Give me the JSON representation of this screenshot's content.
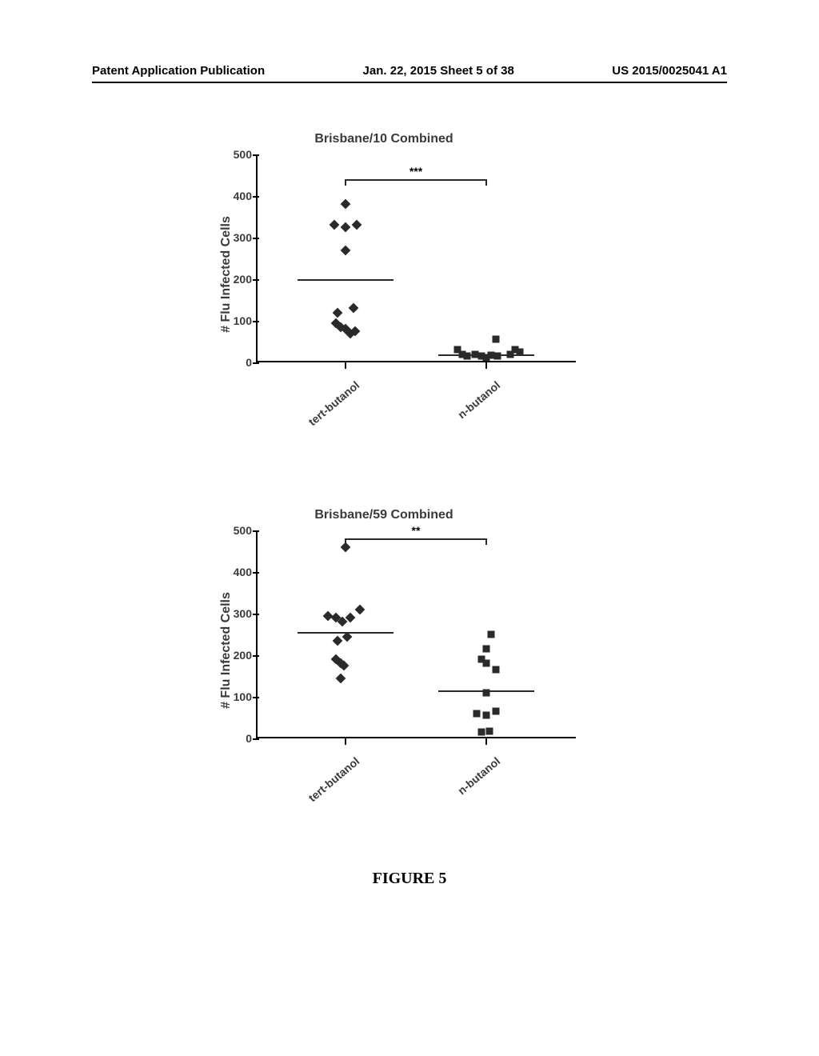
{
  "header": {
    "left": "Patent Application Publication",
    "center": "Jan. 22, 2015  Sheet 5 of 38",
    "right": "US 2015/0025041 A1"
  },
  "figure_label": "FIGURE 5",
  "chart1": {
    "type": "scatter",
    "title": "Brisbane/10 Combined",
    "ylabel": "# Flu Infected Cells",
    "ylim": [
      0,
      500
    ],
    "ytick_step": 100,
    "yticks": [
      0,
      100,
      200,
      300,
      400,
      500
    ],
    "categories": [
      "tert-butanol",
      "n-butanol"
    ],
    "label_fontsize": 16,
    "title_fontsize": 16,
    "tick_fontsize": 14,
    "marker_styles": [
      "diamond",
      "square"
    ],
    "marker_colors": [
      "#2a2a2a",
      "#2a2a2a"
    ],
    "marker_size": 9,
    "mean_line_color": "#2a2a2a",
    "means": [
      200,
      20
    ],
    "significance": "***",
    "sig_y": 440,
    "background_color": "#ffffff",
    "series": [
      {
        "cat": 0,
        "x_offset": 0.0,
        "y": 380
      },
      {
        "cat": 0,
        "x_offset": -0.12,
        "y": 330
      },
      {
        "cat": 0,
        "x_offset": 0.0,
        "y": 325
      },
      {
        "cat": 0,
        "x_offset": 0.12,
        "y": 330
      },
      {
        "cat": 0,
        "x_offset": 0.0,
        "y": 270
      },
      {
        "cat": 0,
        "x_offset": -0.08,
        "y": 120
      },
      {
        "cat": 0,
        "x_offset": 0.08,
        "y": 130
      },
      {
        "cat": 0,
        "x_offset": -0.1,
        "y": 95
      },
      {
        "cat": 0,
        "x_offset": -0.05,
        "y": 85
      },
      {
        "cat": 0,
        "x_offset": 0.0,
        "y": 80
      },
      {
        "cat": 0,
        "x_offset": 0.05,
        "y": 70
      },
      {
        "cat": 0,
        "x_offset": 0.1,
        "y": 75
      },
      {
        "cat": 1,
        "x_offset": -0.3,
        "y": 30
      },
      {
        "cat": 1,
        "x_offset": -0.25,
        "y": 20
      },
      {
        "cat": 1,
        "x_offset": -0.2,
        "y": 15
      },
      {
        "cat": 1,
        "x_offset": -0.12,
        "y": 20
      },
      {
        "cat": 1,
        "x_offset": -0.05,
        "y": 15
      },
      {
        "cat": 1,
        "x_offset": 0.0,
        "y": 12
      },
      {
        "cat": 1,
        "x_offset": 0.05,
        "y": 18
      },
      {
        "cat": 1,
        "x_offset": 0.1,
        "y": 55
      },
      {
        "cat": 1,
        "x_offset": 0.12,
        "y": 15
      },
      {
        "cat": 1,
        "x_offset": 0.25,
        "y": 20
      },
      {
        "cat": 1,
        "x_offset": 0.3,
        "y": 30
      },
      {
        "cat": 1,
        "x_offset": 0.35,
        "y": 25
      }
    ]
  },
  "chart2": {
    "type": "scatter",
    "title": "Brisbane/59 Combined",
    "ylabel": "# Flu Infected Cells",
    "ylim": [
      0,
      500
    ],
    "ytick_step": 100,
    "yticks": [
      0,
      100,
      200,
      300,
      400,
      500
    ],
    "categories": [
      "tert-butanol",
      "n-butanol"
    ],
    "label_fontsize": 16,
    "title_fontsize": 16,
    "tick_fontsize": 14,
    "marker_styles": [
      "diamond",
      "square"
    ],
    "marker_colors": [
      "#2a2a2a",
      "#2a2a2a"
    ],
    "marker_size": 9,
    "mean_line_color": "#2a2a2a",
    "means": [
      255,
      115
    ],
    "significance": "**",
    "sig_y": 480,
    "background_color": "#ffffff",
    "series": [
      {
        "cat": 0,
        "x_offset": 0.0,
        "y": 460
      },
      {
        "cat": 0,
        "x_offset": -0.18,
        "y": 295
      },
      {
        "cat": 0,
        "x_offset": -0.1,
        "y": 290
      },
      {
        "cat": 0,
        "x_offset": -0.03,
        "y": 280
      },
      {
        "cat": 0,
        "x_offset": 0.05,
        "y": 290
      },
      {
        "cat": 0,
        "x_offset": 0.15,
        "y": 310
      },
      {
        "cat": 0,
        "x_offset": -0.08,
        "y": 235
      },
      {
        "cat": 0,
        "x_offset": 0.02,
        "y": 245
      },
      {
        "cat": 0,
        "x_offset": -0.1,
        "y": 190
      },
      {
        "cat": 0,
        "x_offset": -0.05,
        "y": 180
      },
      {
        "cat": 0,
        "x_offset": -0.02,
        "y": 175
      },
      {
        "cat": 0,
        "x_offset": -0.05,
        "y": 145
      },
      {
        "cat": 1,
        "x_offset": 0.05,
        "y": 250
      },
      {
        "cat": 1,
        "x_offset": 0.0,
        "y": 215
      },
      {
        "cat": 1,
        "x_offset": -0.05,
        "y": 190
      },
      {
        "cat": 1,
        "x_offset": 0.0,
        "y": 180
      },
      {
        "cat": 1,
        "x_offset": 0.1,
        "y": 165
      },
      {
        "cat": 1,
        "x_offset": 0.0,
        "y": 110
      },
      {
        "cat": 1,
        "x_offset": -0.1,
        "y": 60
      },
      {
        "cat": 1,
        "x_offset": 0.0,
        "y": 55
      },
      {
        "cat": 1,
        "x_offset": 0.1,
        "y": 65
      },
      {
        "cat": 1,
        "x_offset": -0.05,
        "y": 15
      },
      {
        "cat": 1,
        "x_offset": 0.03,
        "y": 18
      }
    ]
  }
}
